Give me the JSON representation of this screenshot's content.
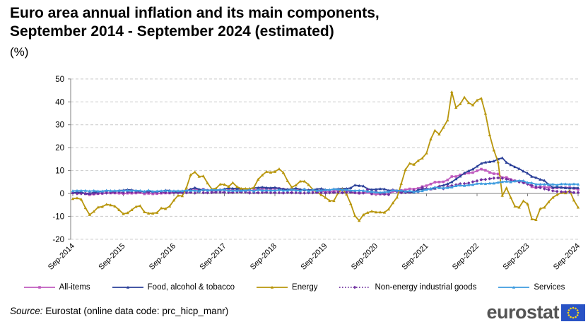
{
  "header": {
    "title_line1": "Euro area annual inflation and its main components,",
    "title_line2": "September 2014 - September 2024 (estimated)",
    "subtitle": "(%)"
  },
  "chart_data": {
    "type": "line",
    "title": "Euro area annual inflation and its main components, September 2014 - September 2024 (estimated)",
    "unit": "%",
    "x_tick_labels": [
      "Sep-2014",
      "Sep-2015",
      "Sep-2016",
      "Sep-2017",
      "Sep-2018",
      "Sep-2019",
      "Sep-2020",
      "Sep-2021",
      "Sep-2022",
      "Sep-2023",
      "Sep-2024"
    ],
    "x_frequency": "monthly",
    "x_label_rotation": -45,
    "ylim": [
      -20,
      50
    ],
    "y_ticks": [
      -20,
      -10,
      0,
      10,
      20,
      30,
      40,
      50
    ],
    "grid": "horizontal-dashed",
    "legend_position": "bottom",
    "axis_color": "#808080",
    "grid_color": "#C9C9C9",
    "series": [
      {
        "name": "All-items",
        "color": "#C05BBF",
        "marker": "square",
        "dash": "solid",
        "values": [
          0.3,
          0.4,
          0.3,
          -0.2,
          -0.6,
          -0.3,
          -0.1,
          0.0,
          0.3,
          0.2,
          0.2,
          0.1,
          -0.1,
          0.1,
          0.1,
          0.2,
          0.3,
          -0.2,
          0.0,
          -0.2,
          -0.1,
          0.1,
          0.2,
          0.2,
          0.4,
          0.5,
          0.6,
          1.1,
          1.8,
          2.0,
          1.5,
          1.9,
          1.4,
          1.3,
          1.3,
          1.5,
          1.5,
          1.4,
          1.5,
          1.4,
          1.3,
          1.1,
          1.3,
          1.3,
          1.9,
          2.0,
          2.1,
          2.0,
          2.1,
          2.2,
          1.9,
          1.5,
          1.4,
          1.5,
          1.4,
          1.7,
          1.2,
          1.3,
          1.0,
          1.0,
          0.8,
          0.7,
          1.0,
          1.3,
          1.4,
          1.2,
          0.7,
          0.3,
          0.1,
          0.3,
          0.4,
          -0.2,
          -0.3,
          -0.3,
          -0.3,
          -0.3,
          0.9,
          0.9,
          1.3,
          1.6,
          2.0,
          1.9,
          2.2,
          3.0,
          3.4,
          4.1,
          4.9,
          5.0,
          5.1,
          5.9,
          7.4,
          7.4,
          8.1,
          8.6,
          8.9,
          9.1,
          9.9,
          10.6,
          10.1,
          9.2,
          8.6,
          8.5,
          6.9,
          7.0,
          6.1,
          5.5,
          5.3,
          5.2,
          4.3,
          2.9,
          2.4,
          2.9,
          2.8,
          2.6,
          2.4,
          2.4,
          2.6,
          2.5,
          2.6,
          2.2,
          1.8
        ]
      },
      {
        "name": "Food, alcohol & tobacco",
        "color": "#2B4099",
        "marker": "triangle",
        "dash": "solid",
        "values": [
          0.3,
          0.5,
          0.5,
          0.0,
          -0.1,
          0.5,
          0.6,
          0.9,
          1.2,
          1.1,
          0.9,
          1.3,
          1.4,
          1.6,
          1.5,
          1.2,
          1.0,
          0.6,
          0.8,
          0.8,
          0.9,
          0.9,
          1.4,
          1.3,
          0.7,
          0.4,
          0.7,
          1.2,
          1.8,
          2.5,
          1.8,
          1.5,
          1.4,
          1.4,
          1.4,
          1.4,
          1.9,
          2.3,
          2.2,
          2.1,
          1.9,
          1.0,
          2.1,
          2.4,
          2.5,
          2.7,
          2.5,
          2.4,
          2.6,
          2.2,
          1.9,
          1.8,
          1.8,
          2.3,
          1.8,
          1.5,
          1.5,
          1.6,
          1.9,
          2.1,
          1.6,
          1.5,
          1.9,
          2.0,
          2.1,
          2.1,
          2.4,
          3.6,
          3.4,
          3.2,
          2.0,
          1.7,
          1.8,
          2.0,
          1.9,
          1.3,
          1.5,
          1.3,
          1.1,
          0.6,
          0.5,
          0.5,
          1.6,
          2.0,
          2.0,
          1.9,
          2.2,
          3.2,
          3.5,
          4.2,
          5.0,
          6.3,
          7.5,
          8.9,
          9.8,
          10.6,
          11.8,
          13.1,
          13.6,
          13.8,
          14.1,
          15.0,
          15.5,
          13.5,
          12.5,
          11.6,
          10.8,
          9.7,
          8.8,
          7.4,
          6.9,
          6.1,
          5.6,
          3.9,
          2.6,
          2.8,
          2.6,
          2.4,
          2.3,
          2.4,
          2.4
        ]
      },
      {
        "name": "Energy",
        "color": "#B8960C",
        "marker": "triangle",
        "dash": "solid",
        "values": [
          -2.3,
          -2.0,
          -2.6,
          -6.3,
          -9.3,
          -7.9,
          -6.0,
          -5.8,
          -4.8,
          -5.1,
          -5.6,
          -7.2,
          -8.9,
          -8.5,
          -7.2,
          -5.8,
          -5.4,
          -8.1,
          -8.7,
          -8.7,
          -8.4,
          -6.4,
          -6.7,
          -5.6,
          -3.0,
          -0.9,
          -1.1,
          2.6,
          8.1,
          9.3,
          7.4,
          7.6,
          4.5,
          1.9,
          2.2,
          4.0,
          3.9,
          3.0,
          4.7,
          2.9,
          2.1,
          2.1,
          2.0,
          2.6,
          6.1,
          8.0,
          9.5,
          9.2,
          9.5,
          10.7,
          9.1,
          5.5,
          2.7,
          3.6,
          5.3,
          5.3,
          3.8,
          1.7,
          0.5,
          -0.6,
          -1.8,
          -3.2,
          -3.2,
          0.2,
          1.9,
          -0.3,
          -4.5,
          -9.7,
          -11.9,
          -9.3,
          -8.4,
          -7.8,
          -8.2,
          -8.2,
          -8.3,
          -6.9,
          -4.2,
          -1.7,
          4.3,
          10.4,
          13.1,
          12.6,
          14.3,
          15.4,
          17.6,
          23.7,
          27.5,
          25.9,
          28.8,
          32.0,
          44.3,
          37.5,
          39.1,
          42.0,
          39.6,
          38.6,
          40.7,
          41.5,
          34.9,
          25.5,
          18.9,
          13.7,
          -0.9,
          2.4,
          -1.8,
          -5.6,
          -6.1,
          -3.3,
          -4.6,
          -11.2,
          -11.5,
          -6.7,
          -6.1,
          -3.7,
          -1.8,
          -0.6,
          0.3,
          0.2,
          1.2,
          -3.0,
          -6.1
        ]
      },
      {
        "name": "Non-energy industrial goods",
        "color": "#7030A0",
        "marker": "diamond",
        "dash": "dotted",
        "values": [
          0.2,
          -0.1,
          -0.1,
          0.0,
          0.1,
          -0.1,
          0.0,
          0.1,
          0.2,
          0.4,
          0.4,
          0.6,
          0.3,
          0.6,
          0.5,
          0.5,
          0.7,
          0.7,
          0.5,
          0.5,
          0.5,
          0.4,
          0.4,
          0.3,
          0.3,
          0.3,
          0.3,
          0.3,
          0.5,
          0.2,
          0.7,
          0.3,
          0.3,
          0.4,
          0.5,
          0.5,
          0.5,
          0.4,
          0.4,
          0.6,
          0.6,
          0.6,
          0.2,
          0.3,
          0.3,
          0.4,
          0.5,
          0.3,
          0.3,
          0.3,
          0.2,
          0.4,
          0.3,
          0.3,
          0.2,
          0.2,
          0.3,
          0.3,
          0.4,
          0.3,
          0.2,
          0.3,
          0.4,
          0.5,
          0.3,
          0.5,
          0.5,
          0.3,
          0.2,
          0.2,
          1.6,
          -0.1,
          0.8,
          -0.1,
          -0.3,
          -0.5,
          1.5,
          1.0,
          0.3,
          0.4,
          0.7,
          1.2,
          0.7,
          2.6,
          2.1,
          2.0,
          2.4,
          2.9,
          2.1,
          3.1,
          3.4,
          3.8,
          4.2,
          4.3,
          4.5,
          5.1,
          5.5,
          6.0,
          6.1,
          6.4,
          6.7,
          6.8,
          6.6,
          6.2,
          5.8,
          5.5,
          5.0,
          4.7,
          4.1,
          3.5,
          2.9,
          2.5,
          2.0,
          1.6,
          1.1,
          0.9,
          0.7,
          0.7,
          0.7,
          0.4,
          0.4
        ]
      },
      {
        "name": "Services",
        "color": "#3E9CDF",
        "marker": "triangle",
        "dash": "solid",
        "values": [
          1.1,
          1.2,
          1.2,
          1.2,
          1.0,
          1.2,
          1.0,
          1.0,
          1.3,
          1.1,
          1.2,
          1.2,
          1.2,
          1.3,
          1.2,
          1.3,
          1.2,
          0.9,
          1.4,
          0.9,
          1.0,
          1.1,
          1.2,
          1.1,
          1.1,
          1.1,
          1.1,
          1.3,
          1.2,
          1.3,
          1.0,
          1.8,
          1.3,
          1.6,
          1.5,
          1.6,
          1.5,
          1.2,
          1.2,
          1.2,
          1.2,
          1.3,
          1.5,
          1.0,
          1.6,
          1.3,
          1.4,
          1.3,
          1.3,
          1.5,
          1.3,
          1.3,
          1.6,
          1.4,
          1.1,
          1.9,
          1.0,
          1.6,
          1.2,
          1.3,
          1.5,
          1.5,
          1.9,
          1.8,
          1.5,
          1.6,
          1.3,
          1.2,
          1.3,
          1.2,
          0.9,
          0.7,
          0.5,
          0.4,
          0.6,
          0.7,
          1.4,
          1.2,
          1.3,
          0.9,
          1.1,
          0.7,
          0.9,
          1.1,
          1.7,
          2.1,
          2.7,
          2.4,
          2.3,
          2.5,
          2.7,
          3.3,
          3.5,
          3.4,
          3.7,
          3.8,
          4.3,
          4.3,
          4.2,
          4.4,
          4.4,
          4.8,
          5.1,
          5.2,
          5.0,
          5.4,
          5.6,
          5.5,
          4.7,
          4.6,
          4.0,
          4.0,
          4.0,
          4.0,
          4.0,
          3.7,
          4.1,
          4.1,
          4.0,
          4.1,
          4.0
        ]
      }
    ]
  },
  "footer": {
    "source_label": "Source:",
    "source_text": "Eurostat (online data code: prc_hicp_manr)",
    "logo_text": "eurostat",
    "flag_color": "#2953C5",
    "star_color": "#FFD617"
  }
}
